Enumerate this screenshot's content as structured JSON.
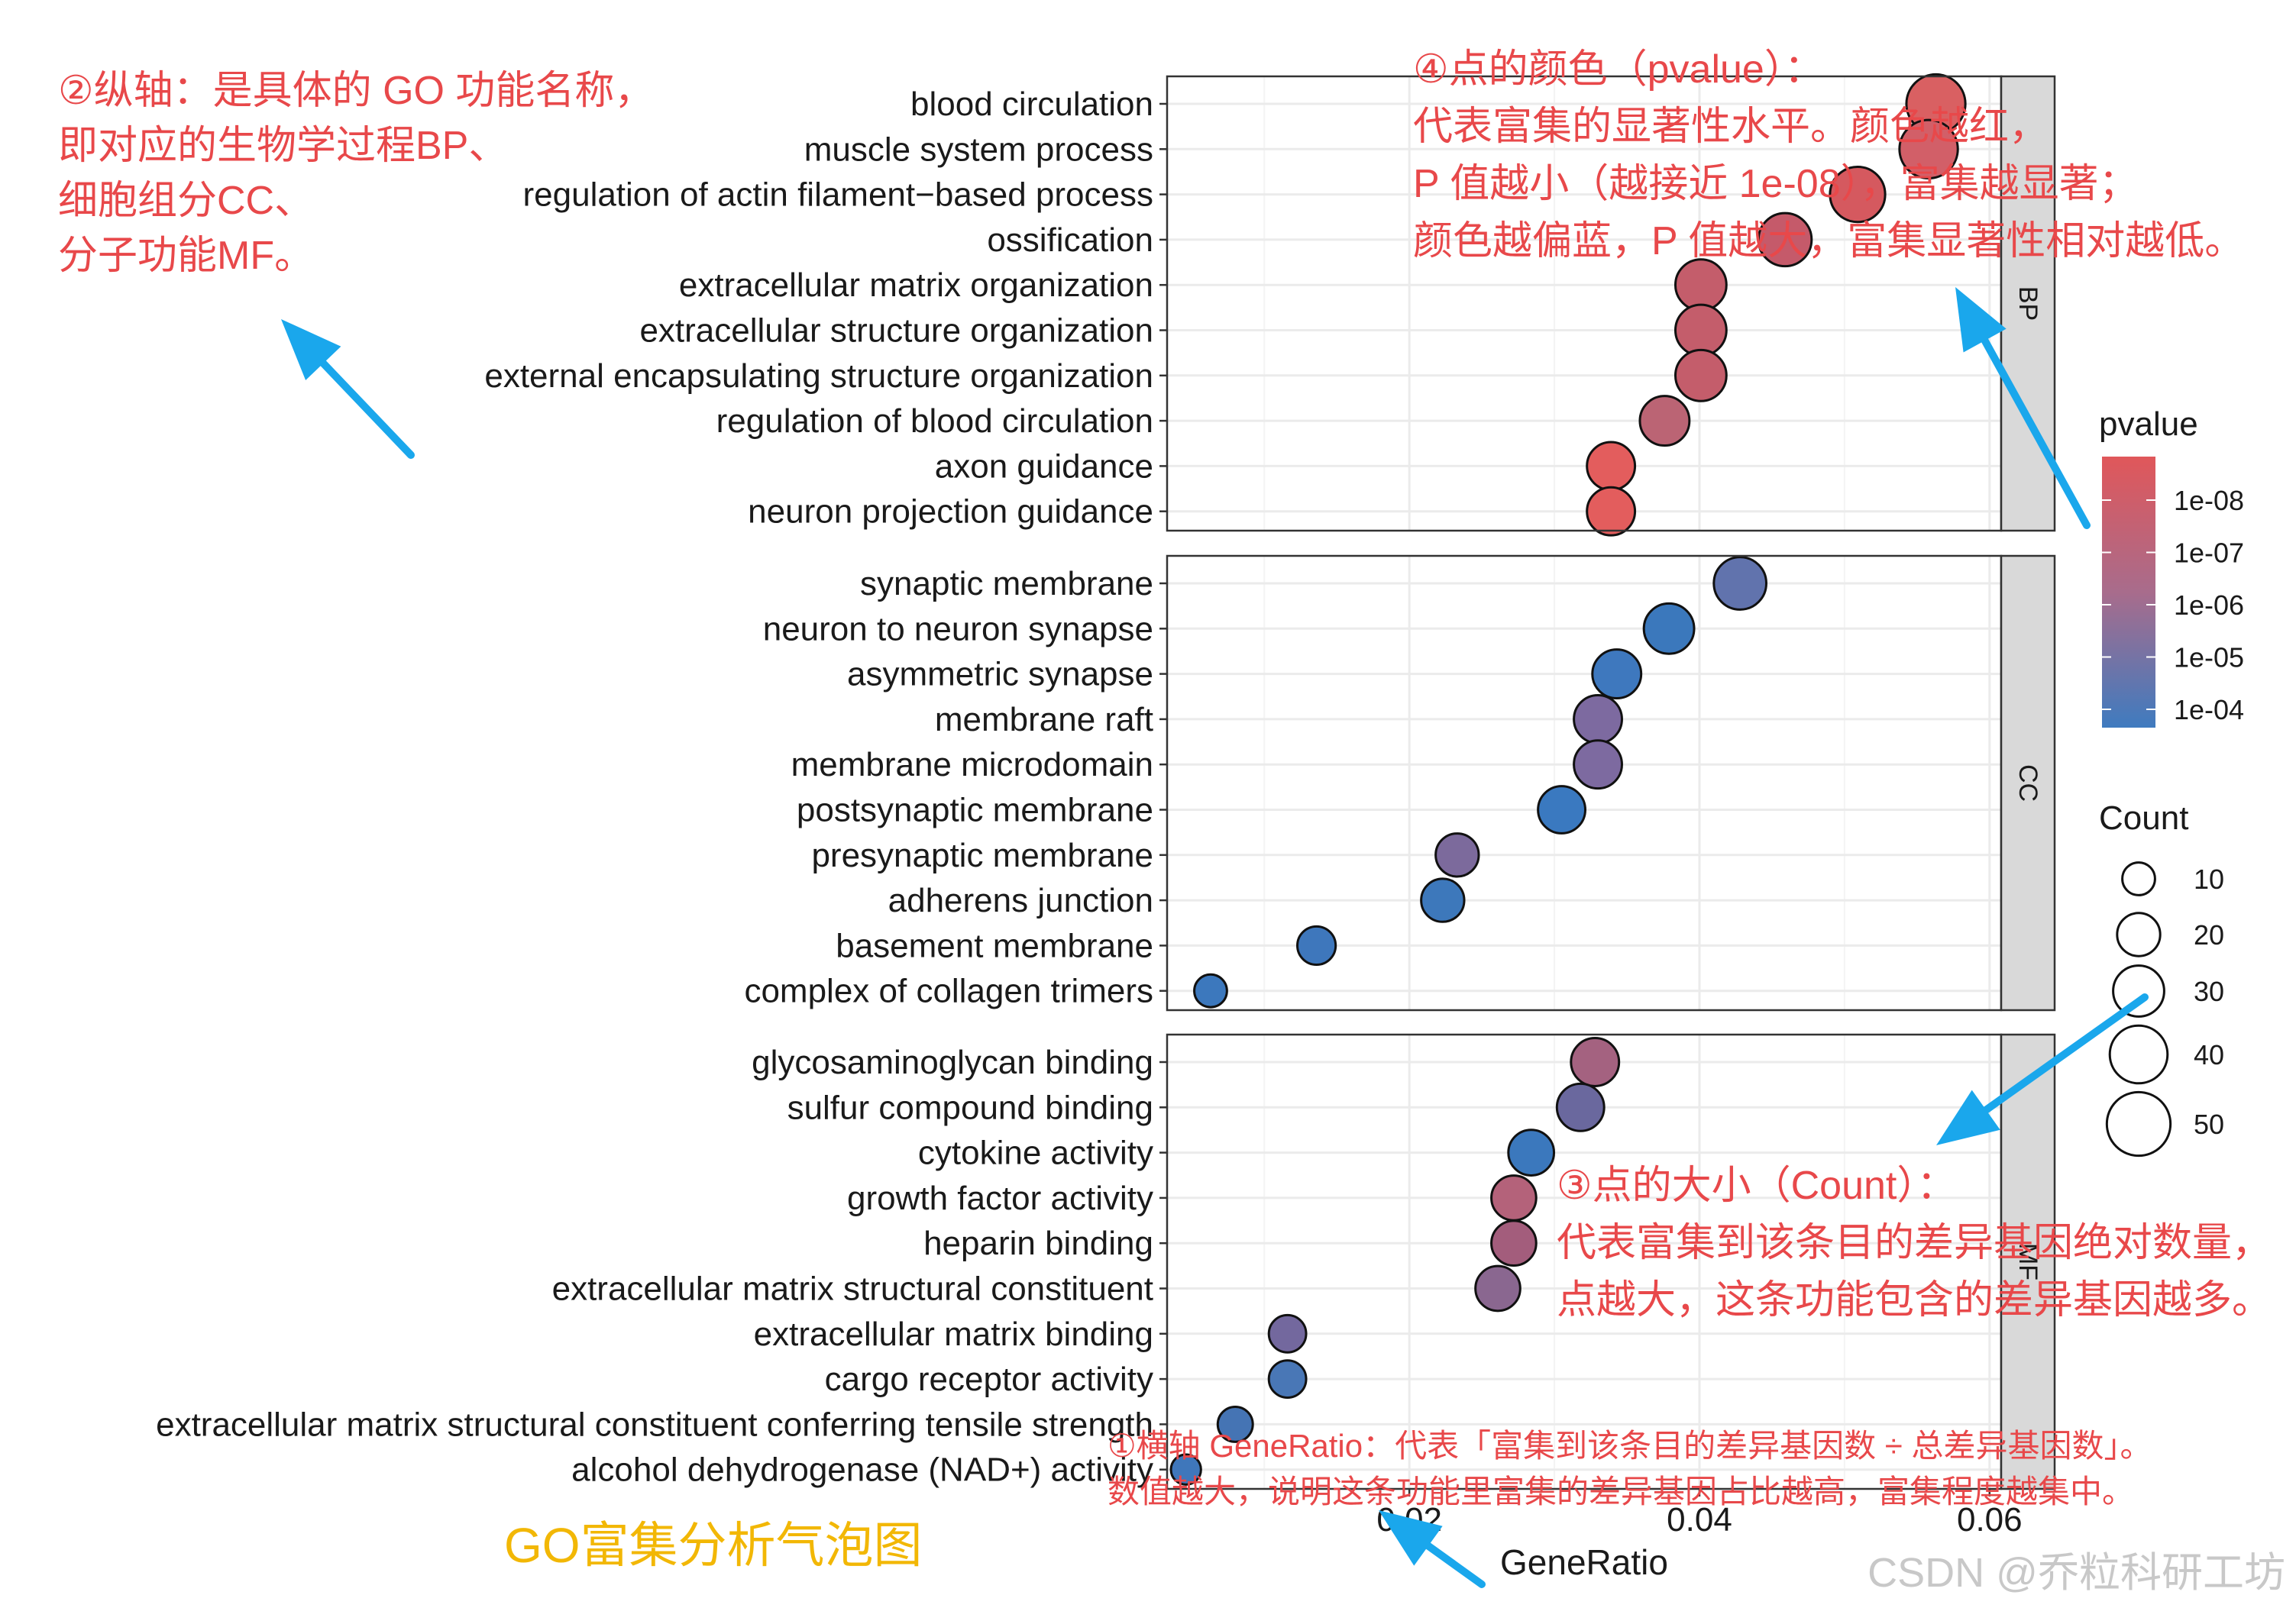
{
  "chart_data": {
    "type": "scatter",
    "xlabel": "GeneRatio",
    "x_ticks": [
      {
        "value": 0.02,
        "label": "0.02"
      },
      {
        "value": 0.04,
        "label": "0.04"
      },
      {
        "value": 0.06,
        "label": "0.06"
      }
    ],
    "xlim": [
      0.0033,
      0.0608
    ],
    "grid": true,
    "color_legend": {
      "title": "pvalue",
      "labels": [
        "1e-08",
        "1e-07",
        "1e-06",
        "1e-05",
        "1e-04"
      ],
      "colors": [
        "#e0575a",
        "#cd6070",
        "#a86c8c",
        "#7a73a8",
        "#3f7bbf"
      ],
      "placement": "right"
    },
    "size_legend": {
      "title": "Count",
      "values": [
        10,
        20,
        30,
        40,
        50
      ],
      "labels": [
        "10",
        "20",
        "30",
        "40",
        "50"
      ],
      "placement": "right"
    },
    "panels": [
      {
        "strip": "BP",
        "terms": [
          {
            "label": "blood circulation",
            "x": 0.0563,
            "count": 42,
            "color": "#d96062"
          },
          {
            "label": "muscle system process",
            "x": 0.0558,
            "count": 41,
            "color": "#d25f68"
          },
          {
            "label": "regulation of actin filament−based process",
            "x": 0.0509,
            "count": 36,
            "color": "#d5595f"
          },
          {
            "label": "ossification",
            "x": 0.0459,
            "count": 33,
            "color": "#c55a6a"
          },
          {
            "label": "extracellular matrix organization",
            "x": 0.0401,
            "count": 30,
            "color": "#c45d6b"
          },
          {
            "label": "extracellular structure organization",
            "x": 0.0401,
            "count": 30,
            "color": "#c45d6b"
          },
          {
            "label": "external encapsulating structure organization",
            "x": 0.0401,
            "count": 30,
            "color": "#c45d6b"
          },
          {
            "label": "regulation of blood circulation",
            "x": 0.0376,
            "count": 28,
            "color": "#bb6474"
          },
          {
            "label": "axon guidance",
            "x": 0.0339,
            "count": 26,
            "color": "#e35d5d"
          },
          {
            "label": "neuron projection guidance",
            "x": 0.0339,
            "count": 26,
            "color": "#e35d5d"
          }
        ]
      },
      {
        "strip": "CC",
        "terms": [
          {
            "label": "synaptic membrane",
            "x": 0.0428,
            "count": 32,
            "color": "#6173ad"
          },
          {
            "label": "neuron to neuron synapse",
            "x": 0.0379,
            "count": 29,
            "color": "#3b78bc"
          },
          {
            "label": "asymmetric synapse",
            "x": 0.0343,
            "count": 27,
            "color": "#3e78be"
          },
          {
            "label": "membrane raft",
            "x": 0.033,
            "count": 26,
            "color": "#7d6aa0"
          },
          {
            "label": "membrane microdomain",
            "x": 0.033,
            "count": 26,
            "color": "#7d6aa0"
          },
          {
            "label": "postsynaptic membrane",
            "x": 0.0305,
            "count": 25,
            "color": "#3a79c0"
          },
          {
            "label": "presynaptic membrane",
            "x": 0.0233,
            "count": 20,
            "color": "#7c6a9c"
          },
          {
            "label": "adherens junction",
            "x": 0.0223,
            "count": 20,
            "color": "#3d78bb"
          },
          {
            "label": "basement membrane",
            "x": 0.0136,
            "count": 15,
            "color": "#3e77bc"
          },
          {
            "label": "complex of collagen trimers",
            "x": 0.0063,
            "count": 10,
            "color": "#3c78bd"
          }
        ]
      },
      {
        "strip": "MF",
        "terms": [
          {
            "label": "glycosaminoglycan binding",
            "x": 0.0328,
            "count": 26,
            "color": "#a46280"
          },
          {
            "label": "sulfur compound binding",
            "x": 0.0318,
            "count": 25,
            "color": "#6a689e"
          },
          {
            "label": "cytokine activity",
            "x": 0.0284,
            "count": 23,
            "color": "#3b78bd"
          },
          {
            "label": "growth factor activity",
            "x": 0.0272,
            "count": 22,
            "color": "#b4627a"
          },
          {
            "label": "heparin binding",
            "x": 0.0272,
            "count": 22,
            "color": "#a35d7c"
          },
          {
            "label": "extracellular matrix structural constituent",
            "x": 0.0261,
            "count": 22,
            "color": "#8a6790"
          },
          {
            "label": "extracellular matrix binding",
            "x": 0.0116,
            "count": 14,
            "color": "#73689e"
          },
          {
            "label": "cargo receptor activity",
            "x": 0.0116,
            "count": 14,
            "color": "#4977b6"
          },
          {
            "label": "extracellular matrix structural constituent conferring tensile strength",
            "x": 0.008,
            "count": 12,
            "color": "#4574b4"
          },
          {
            "label": "alcohol dehydrogenase (NAD+) activity",
            "x": 0.0046,
            "count": 8,
            "color": "#3f77bb"
          }
        ]
      }
    ]
  },
  "annotations": {
    "note1_line1": "①横轴 GeneRatio：代表「富集到该条目的差异基因数 ÷ 总差异基因数」。",
    "note1_line2": "数值越大，说明这条功能里富集的差异基因占比越高，富集程度越集中。",
    "note2_lines": [
      "②纵轴：是具体的 GO 功能名称，",
      "即对应的生物学过程BP、",
      "细胞组分CC、",
      "分子功能MF。"
    ],
    "note3_lines": [
      "③点的大小（Count）：",
      "代表富集到该条目的差异基因绝对数量，",
      "点越大，这条功能包含的差异基因越多。"
    ],
    "note4_lines": [
      "④点的颜色（pvalue）：",
      "代表富集的显著性水平。颜色越红，",
      "P 值越小（越接近 1e-08），富集越显著；",
      "颜色越偏蓝，P 值越大，富集显著性相对越低。"
    ],
    "caption": "GO富集分析气泡图",
    "watermark": "CSDN @乔粒科研工坊"
  },
  "colors": {
    "annotation_red": "#e8484a",
    "caption_gold": "#f2b705",
    "arrow_blue": "#1aa7ec",
    "strip_fill": "#d9d9d9",
    "grid": "#ebebeb",
    "watermark": "#c8c8c8"
  }
}
